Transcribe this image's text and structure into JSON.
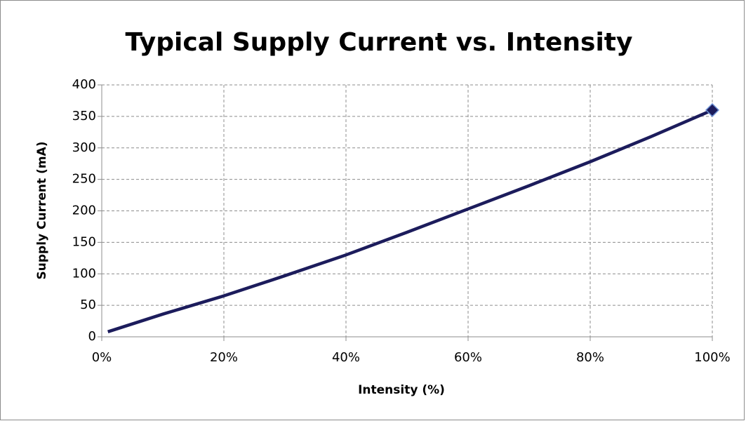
{
  "chart_data": {
    "type": "line",
    "title": "Typical Supply Current vs. Intensity",
    "x_label": "Intensity (%)",
    "y_label": "Supply Current (mA)",
    "x": [
      1,
      10,
      20,
      30,
      40,
      50,
      60,
      70,
      80,
      90,
      100
    ],
    "series": [
      {
        "name": "Supply Current",
        "color": "#1c1c5c",
        "values": [
          8,
          36,
          65,
          97,
          130,
          166,
          203,
          240,
          278,
          318,
          360
        ]
      }
    ],
    "xlim": [
      0,
      100
    ],
    "xticks": [
      {
        "value": 0,
        "label": "0%"
      },
      {
        "value": 20,
        "label": "20%"
      },
      {
        "value": 40,
        "label": "40%"
      },
      {
        "value": 60,
        "label": "60%"
      },
      {
        "value": 80,
        "label": "80%"
      },
      {
        "value": 100,
        "label": "100%"
      }
    ],
    "ylim": [
      0,
      400
    ],
    "yticks": [
      0,
      50,
      100,
      150,
      200,
      250,
      300,
      350,
      400
    ],
    "grid": true
  }
}
